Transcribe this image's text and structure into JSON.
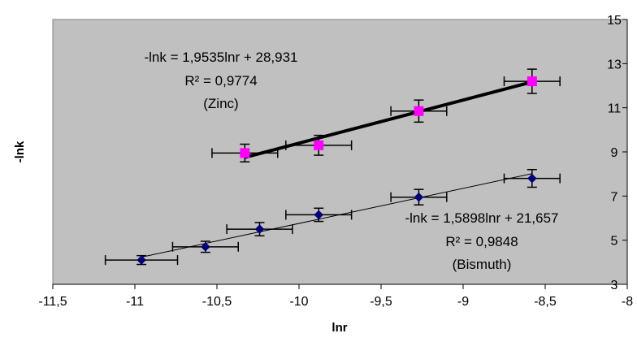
{
  "chart_data": {
    "type": "scatter",
    "xlabel": "lnr",
    "ylabel": "-lnk",
    "xlim": [
      -11.5,
      -8
    ],
    "ylim": [
      3,
      15
    ],
    "x_ticks": [
      "-11,5",
      "-11",
      "-10,5",
      "-10",
      "-9,5",
      "-9",
      "-8,5",
      "-8"
    ],
    "y_ticks": [
      "3",
      "5",
      "7",
      "9",
      "11",
      "13",
      "15"
    ],
    "plot_background": "#c0c0c0",
    "grid": false,
    "series": [
      {
        "color": "#ff00ff",
        "marker": "square",
        "x": [
          -10.33,
          -9.88,
          -9.27,
          -8.58
        ],
        "y": [
          8.95,
          9.3,
          10.85,
          12.2
        ],
        "x_error": [
          0.2,
          0.2,
          0.17,
          0.17
        ],
        "y_error": [
          0.4,
          0.45,
          0.5,
          0.55
        ],
        "trendline": {
          "slope": 1.9535,
          "intercept": 28.931,
          "x_range": [
            -10.33,
            -8.58
          ],
          "color": "#000000",
          "width": 4
        },
        "annotation": [
          "-lnk = 1,9535lnr + 28,931",
          "R²  = 0,9774",
          "(Zinc)"
        ]
      },
      {
        "color": "#000080",
        "marker": "diamond",
        "x": [
          -10.96,
          -10.57,
          -10.24,
          -9.88,
          -9.27,
          -8.58
        ],
        "y": [
          4.1,
          4.7,
          5.5,
          6.15,
          6.95,
          7.8
        ],
        "x_error": [
          0.22,
          0.2,
          0.2,
          0.2,
          0.17,
          0.17
        ],
        "y_error": [
          0.2,
          0.25,
          0.3,
          0.3,
          0.35,
          0.4
        ],
        "trendline": {
          "slope": 1.5898,
          "intercept": 21.657,
          "x_range": [
            -10.96,
            -8.58
          ],
          "color": "#000000",
          "width": 1
        },
        "annotation": [
          "-lnk = 1,5898lnr + 21,657",
          "R²  = 0,9848",
          "(Bismuth)"
        ]
      }
    ]
  }
}
